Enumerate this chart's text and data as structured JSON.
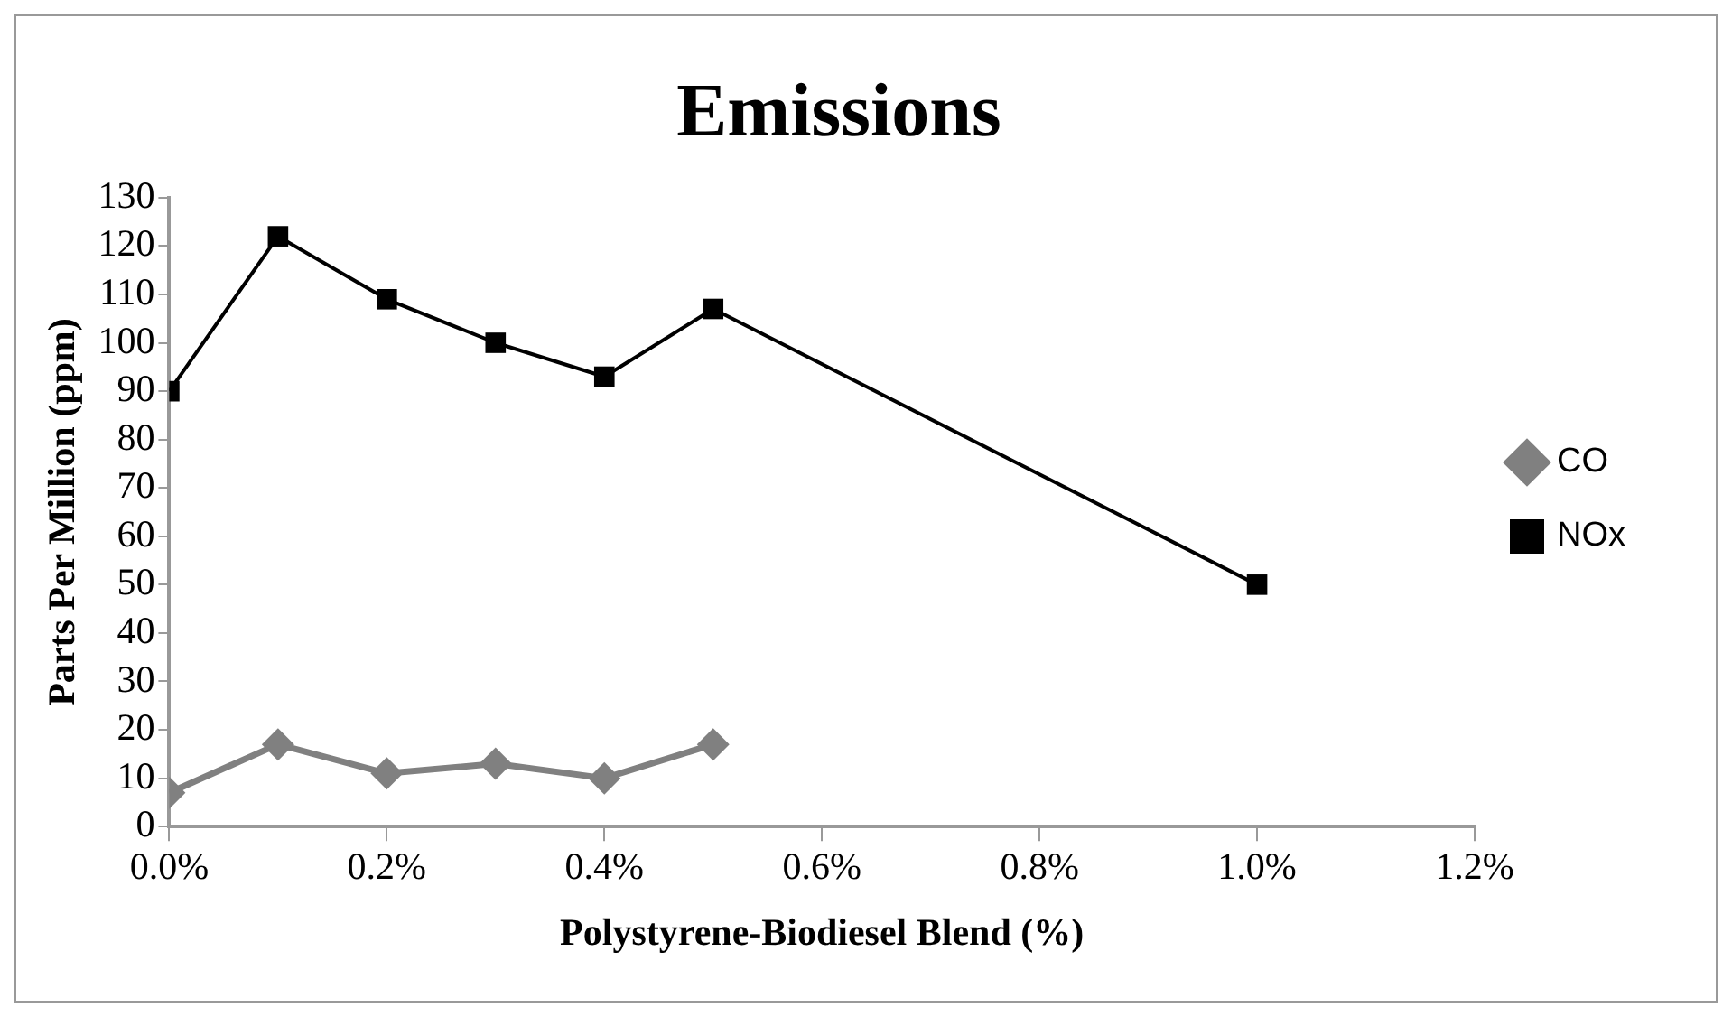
{
  "chart_data": {
    "type": "line",
    "title": "Emissions",
    "xlabel": "Polystyrene-Biodiesel Blend (%)",
    "ylabel": "Parts Per Million (ppm)",
    "x": [
      0,
      0.1,
      0.2,
      0.3,
      0.4,
      0.5,
      1.0
    ],
    "series": [
      {
        "name": "CO",
        "color": "#808080",
        "marker": "diamond",
        "values": [
          7,
          17,
          11,
          13,
          10,
          17,
          null
        ]
      },
      {
        "name": "NOx",
        "color": "#000000",
        "marker": "square",
        "values": [
          90,
          122,
          109,
          100,
          93,
          107,
          50
        ]
      }
    ],
    "xlim": [
      0,
      1.2
    ],
    "xticks": [
      {
        "value": 0,
        "label": "0.0%"
      },
      {
        "value": 0.2,
        "label": "0.2%"
      },
      {
        "value": 0.4,
        "label": "0.4%"
      },
      {
        "value": 0.6,
        "label": "0.6%"
      },
      {
        "value": 0.8,
        "label": "0.8%"
      },
      {
        "value": 1.0,
        "label": "1.0%"
      },
      {
        "value": 1.2,
        "label": "1.2%"
      }
    ],
    "ylim": [
      0,
      130
    ],
    "yticks": [
      0,
      10,
      20,
      30,
      40,
      50,
      60,
      70,
      80,
      90,
      100,
      110,
      120,
      130
    ],
    "grid": false,
    "legend": "right"
  }
}
